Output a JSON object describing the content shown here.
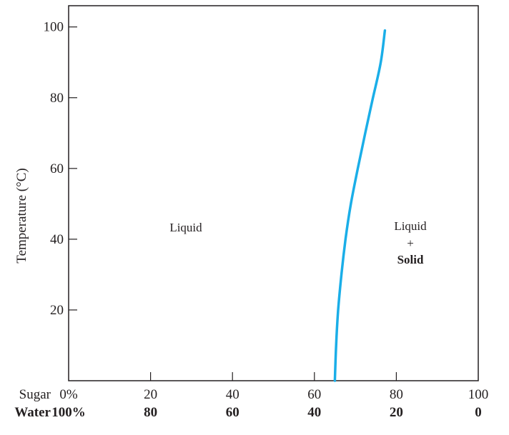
{
  "chart_data": {
    "type": "line",
    "ylabel": "Temperature (°C)",
    "ylim": [
      0,
      106
    ],
    "y_ticks": [
      20,
      40,
      60,
      80,
      100
    ],
    "y_tick_labels": [
      "20",
      "40",
      "60",
      "80",
      "100"
    ],
    "xlim": [
      0,
      100
    ],
    "x_axes": [
      {
        "name": "Sugar",
        "tick_values": [
          0,
          20,
          40,
          60,
          80,
          100
        ],
        "tick_labels": [
          "0%",
          "20",
          "40",
          "60",
          "80",
          "100"
        ],
        "bold": false
      },
      {
        "name": "Water",
        "tick_values": [
          0,
          20,
          40,
          60,
          80,
          100
        ],
        "tick_labels": [
          "100%",
          "80",
          "60",
          "40",
          "20",
          "0"
        ],
        "bold": true
      }
    ],
    "series": [
      {
        "color": "#1aaee8",
        "points": [
          {
            "x": 65.0,
            "y": 0
          },
          {
            "x": 65.3,
            "y": 10
          },
          {
            "x": 65.8,
            "y": 20
          },
          {
            "x": 66.6,
            "y": 30
          },
          {
            "x": 67.6,
            "y": 40
          },
          {
            "x": 68.9,
            "y": 50
          },
          {
            "x": 70.6,
            "y": 60
          },
          {
            "x": 72.4,
            "y": 70
          },
          {
            "x": 74.3,
            "y": 80
          },
          {
            "x": 76.2,
            "y": 90
          },
          {
            "x": 77.2,
            "y": 99
          }
        ]
      }
    ],
    "annotations": {
      "liquid": "Liquid",
      "two_phase_top": "Liquid",
      "two_phase_plus": "+",
      "two_phase_bottom": "Solid"
    }
  }
}
